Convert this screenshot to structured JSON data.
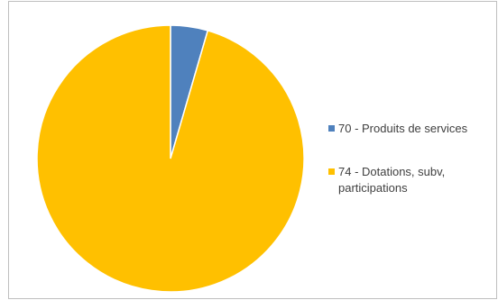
{
  "chart_data": {
    "type": "pie",
    "title": "",
    "categories": [
      "70 - Produits de services",
      "74 - Dotations, subv, participations"
    ],
    "values": [
      4.5,
      95.5
    ],
    "colors": [
      "#4f81bd",
      "#ffc000"
    ],
    "legend_position": "right",
    "legend": [
      {
        "label_lines": [
          "70 - Produits de services"
        ],
        "color": "#4f81bd"
      },
      {
        "label_lines": [
          "74 - Dotations, subv,",
          "participations"
        ],
        "color": "#ffc000"
      }
    ]
  }
}
